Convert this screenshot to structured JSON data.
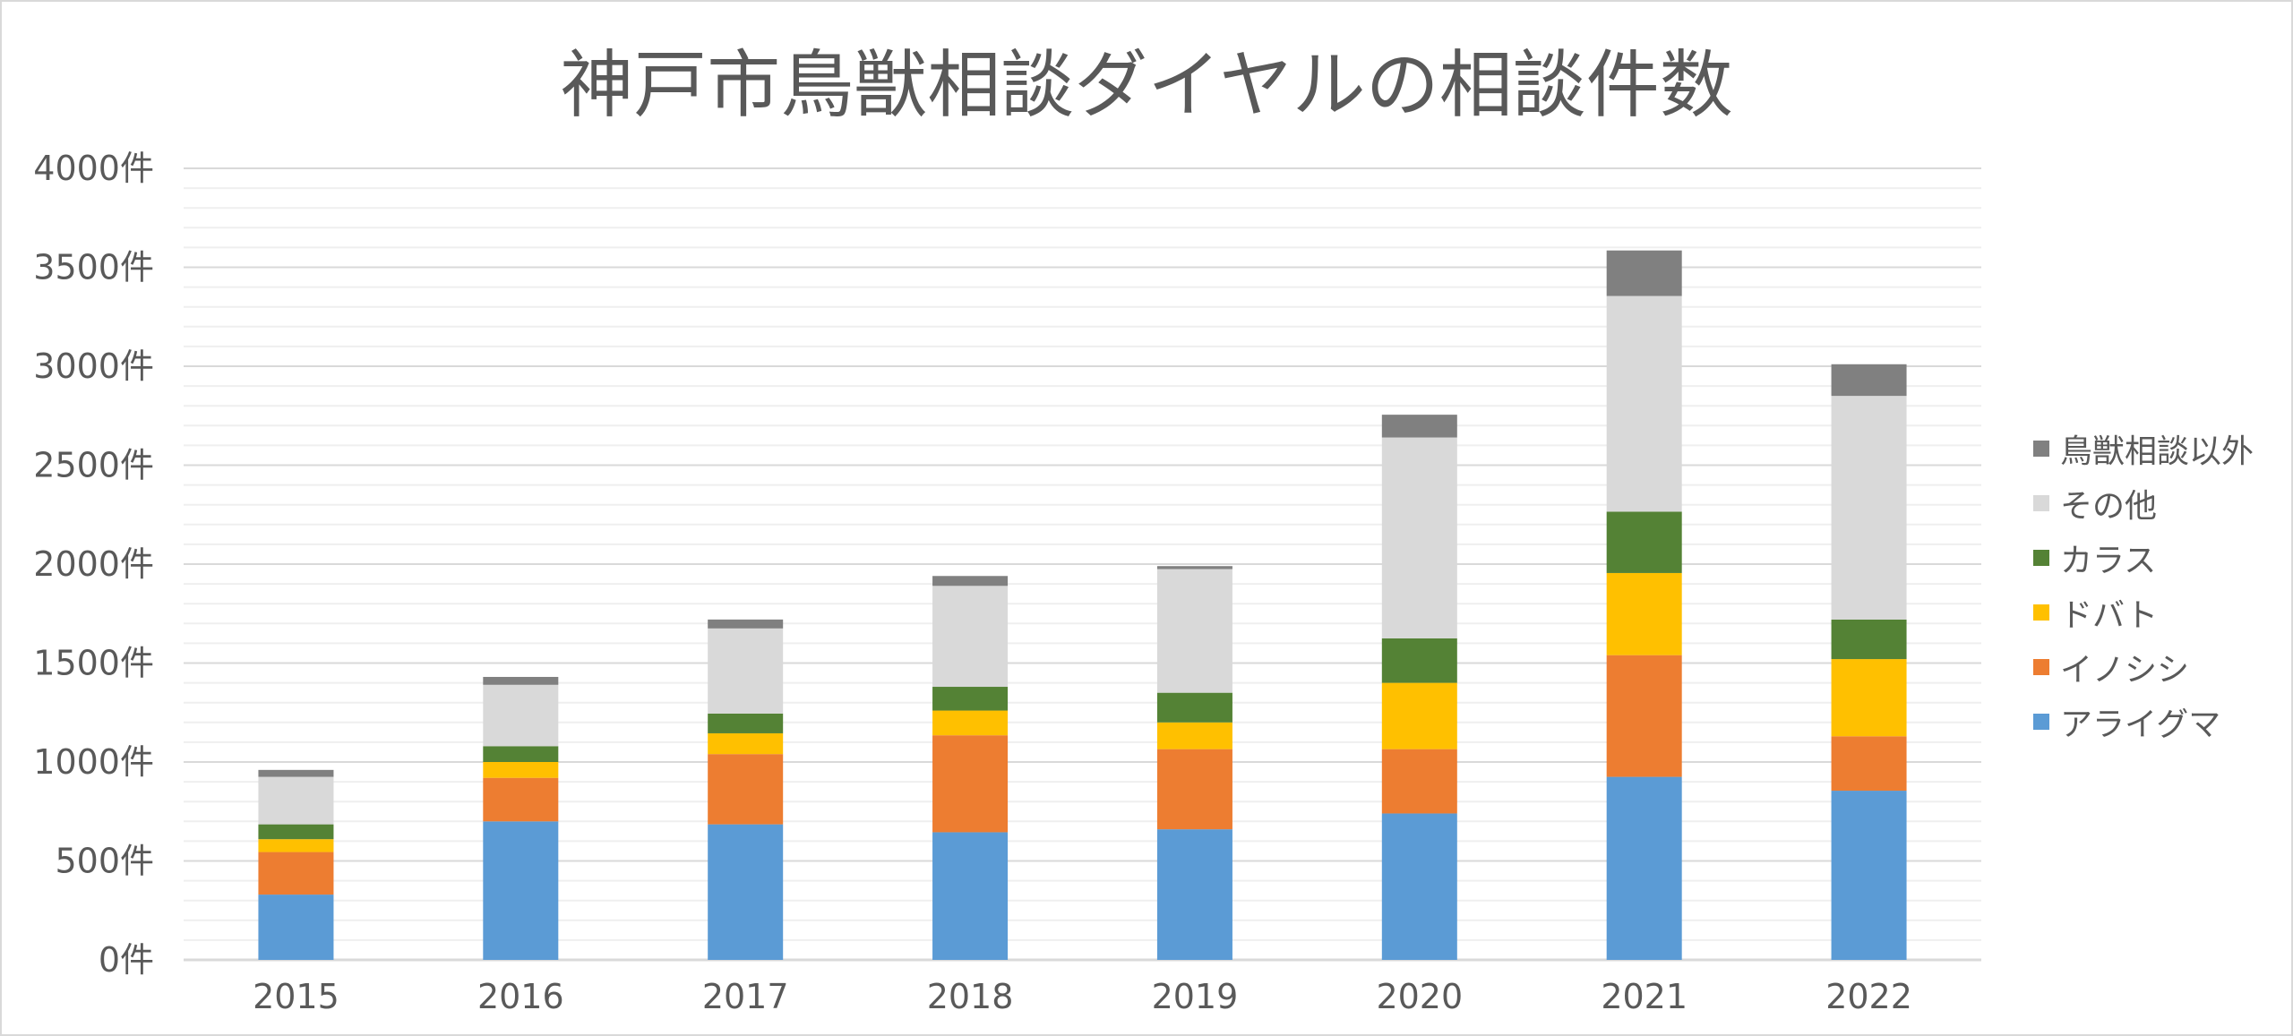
{
  "chart_data": {
    "type": "bar",
    "stacked": true,
    "title": "神戸市鳥獣相談ダイヤルの相談件数",
    "xlabel": "",
    "ylabel": "",
    "ylim": [
      0,
      4000
    ],
    "y_unit": "件",
    "y_ticks": [
      "0件",
      "500件",
      "1000件",
      "1500件",
      "2000件",
      "2500件",
      "3000件",
      "3500件",
      "4000件"
    ],
    "grid": true,
    "legend_position": "right",
    "categories": [
      "2015",
      "2016",
      "2017",
      "2018",
      "2019",
      "2020",
      "2021",
      "2022"
    ],
    "series": [
      {
        "name": "アライグマ",
        "color": "#5b9bd5",
        "values": [
          330,
          700,
          685,
          645,
          660,
          740,
          925,
          855
        ]
      },
      {
        "name": "イノシシ",
        "color": "#ed7d31",
        "values": [
          215,
          220,
          355,
          490,
          405,
          325,
          615,
          275
        ]
      },
      {
        "name": "ドバト",
        "color": "#ffc000",
        "values": [
          65,
          80,
          105,
          125,
          135,
          335,
          415,
          390
        ]
      },
      {
        "name": "カラス",
        "color": "#548235",
        "values": [
          75,
          80,
          100,
          120,
          150,
          225,
          310,
          200
        ]
      },
      {
        "name": "その他",
        "color": "#d9d9d9",
        "values": [
          240,
          310,
          430,
          510,
          625,
          1015,
          1090,
          1130
        ]
      },
      {
        "name": "鳥獣相談以外",
        "color": "#808080",
        "values": [
          35,
          40,
          45,
          50,
          15,
          115,
          230,
          160
        ]
      }
    ]
  }
}
